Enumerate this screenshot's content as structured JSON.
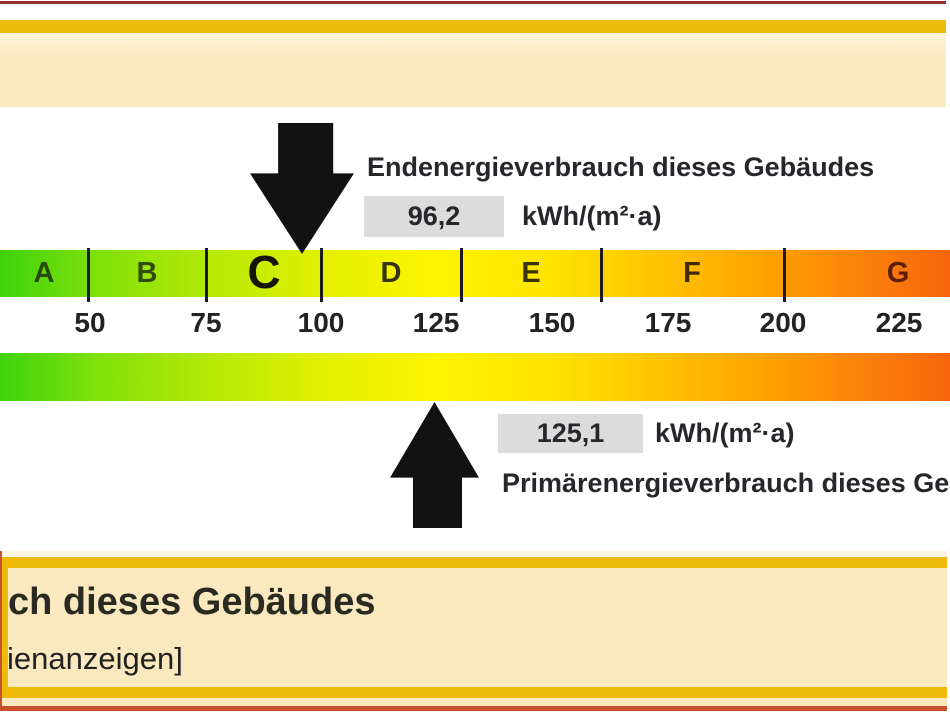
{
  "colors": {
    "accent_gold": "#EFBB0B",
    "cream": "#FAE9BE",
    "top_border_red": "#9C2C2C",
    "bottom_border_red": "#C7502E",
    "value_box_gray": "#DCDCDC",
    "text_dark": "#26262B",
    "arrow_black": "#121212",
    "scale_gradient_ends": [
      "#3ED30C",
      "#F8650D"
    ]
  },
  "final_energy": {
    "label": "Endenergieverbrauch dieses Gebäudes",
    "value": "96,2",
    "unit": "kWh/(m²·a)"
  },
  "primary_energy": {
    "label": "Primärenergieverbrauch dieses Gebäudes",
    "value": "125,1",
    "unit": "kWh/(m²·a)"
  },
  "scale": {
    "letters": [
      "A",
      "B",
      "C",
      "D",
      "E",
      "F",
      "G"
    ],
    "letter_colors": [
      "#2B4A0E",
      "#2F4E0C",
      "#141402",
      "#34340A",
      "#3A3208",
      "#402A06",
      "#5C1F0A"
    ],
    "highlighted_class": "C",
    "tick_labels": [
      "50",
      "75",
      "100",
      "125",
      "150",
      "175",
      "200",
      "225"
    ]
  },
  "footer": {
    "line1": "ch dieses Gebäudes",
    "line2": "ienanzeigen]"
  },
  "chart_data": {
    "type": "gauge",
    "unit": "kWh/(m²·a)",
    "axis_tick_labels": [
      50,
      75,
      100,
      125,
      150,
      175,
      200,
      225
    ],
    "visible_axis_range_estimate": [
      44,
      236
    ],
    "classes": [
      {
        "label": "A",
        "max": 50
      },
      {
        "label": "B",
        "max": 75
      },
      {
        "label": "C",
        "max": 100
      },
      {
        "label": "D",
        "max": 130
      },
      {
        "label": "E",
        "max": 160
      },
      {
        "label": "F",
        "max": 200
      },
      {
        "label": "G",
        "max": 250
      }
    ],
    "highlighted_class": "C",
    "markers": [
      {
        "label": "Endenergieverbrauch dieses Gebäudes",
        "value": 96.2,
        "arrow": "down"
      },
      {
        "label": "Primärenergieverbrauch dieses Gebäudes",
        "value": 125.1,
        "arrow": "up"
      }
    ],
    "color_scale": "green-to-red continuous gradient, legend none, grid off"
  }
}
